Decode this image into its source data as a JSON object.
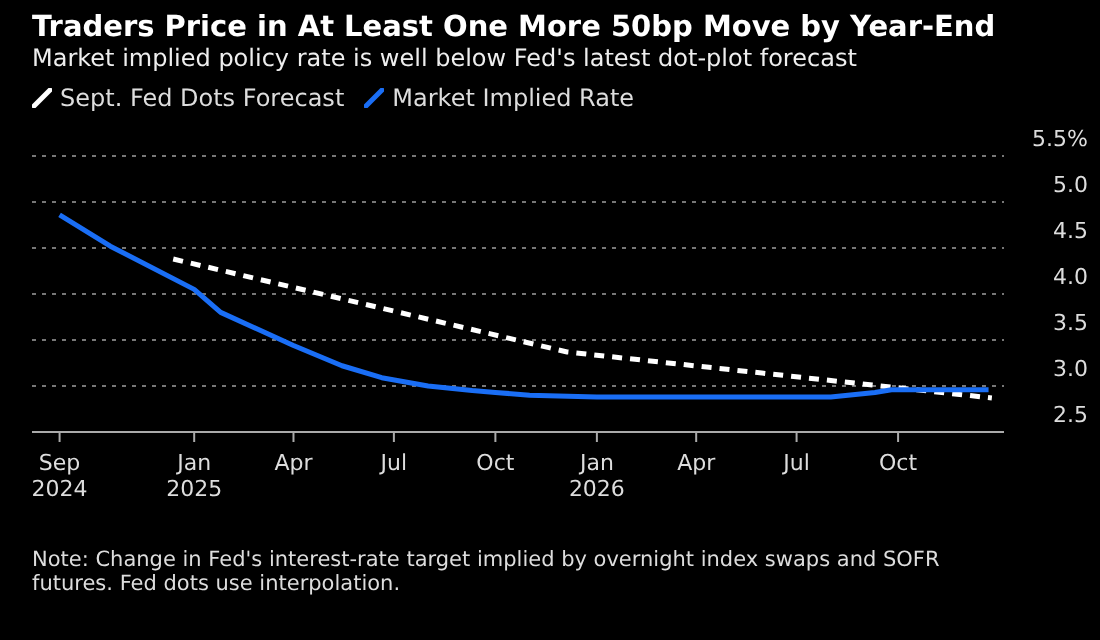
{
  "chart_data": {
    "type": "line",
    "title": "Traders Price in At Least One More 50bp Move by Year-End",
    "subtitle": "Market implied policy rate is well below Fed's latest dot-plot forecast",
    "annotations": [
      "Note: Change in Fed's interest-rate target implied by overnight index swaps and SOFR futures. Fed dots use interpolation."
    ],
    "xlim": [
      "2024-08-07",
      "2027-01-05"
    ],
    "xticks": [
      {
        "value": "2024-09-01",
        "label": "Sep\n2024"
      },
      {
        "value": "2025-01-01",
        "label": "Jan\n2025"
      },
      {
        "value": "2025-04-01",
        "label": "Apr"
      },
      {
        "value": "2025-07-01",
        "label": "Jul"
      },
      {
        "value": "2025-10-01",
        "label": "Oct"
      },
      {
        "value": "2026-01-01",
        "label": "Jan\n2026"
      },
      {
        "value": "2026-04-01",
        "label": "Apr"
      },
      {
        "value": "2026-07-01",
        "label": "Jul"
      },
      {
        "value": "2026-10-01",
        "label": "Oct"
      }
    ],
    "ylim": [
      2.5,
      5.5
    ],
    "yticks": [
      2.5,
      {
        "value": 3,
        "label": "3.0"
      },
      3.5,
      {
        "value": 4,
        "label": "4.0"
      },
      4.5,
      {
        "value": 5,
        "label": "5.0"
      },
      {
        "value": 5.5,
        "label": "5.5%"
      }
    ],
    "grid": "y",
    "legend": "top left",
    "marker": "none",
    "series": [
      {
        "name": "Sept. Fed Dots Forecast",
        "color": "#ffffff",
        "line_style": "dashed",
        "x": [
          "2024-12-13",
          "2025-12-05",
          "2026-12-25"
        ],
        "values": [
          4.38,
          3.37,
          2.87
        ]
      },
      {
        "name": "Market Implied Rate",
        "color": "#1a6ef5",
        "line_style": "solid",
        "x": [
          "2024-09-01",
          "2024-10-17",
          "2025-01-01",
          "2025-01-25",
          "2025-04-01",
          "2025-05-15",
          "2025-06-20",
          "2025-08-01",
          "2025-09-10",
          "2025-10-01",
          "2025-11-01",
          "2026-01-01",
          "2026-04-01",
          "2026-08-01",
          "2026-09-10",
          "2026-09-25",
          "2026-12-22"
        ],
        "values": [
          4.86,
          4.52,
          4.05,
          3.8,
          3.44,
          3.22,
          3.09,
          3.0,
          2.95,
          2.93,
          2.9,
          2.88,
          2.88,
          2.88,
          2.93,
          2.96,
          2.96
        ]
      }
    ]
  }
}
